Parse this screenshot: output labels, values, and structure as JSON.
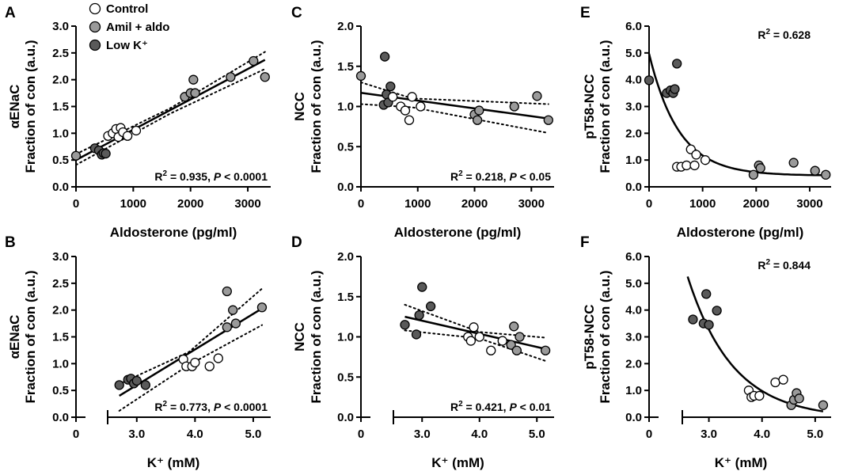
{
  "colors": {
    "control": "#ffffff",
    "amil": "#9a9a9a",
    "lowk": "#5a5a5a",
    "stroke": "#000000"
  },
  "legend": [
    {
      "label": "Control",
      "group": "control"
    },
    {
      "label": "Amil + aldo",
      "group": "amil"
    },
    {
      "label": "Low K⁺",
      "group": "lowk"
    }
  ],
  "chart_data": [
    {
      "id": "A",
      "type": "scatter",
      "panel_label": "A",
      "xlabel": "Aldosterone (pg/ml)",
      "ylabel_line1": "αENaC",
      "ylabel_line2": "Fraction of con (a.u.)",
      "xlim": [
        0,
        3400
      ],
      "ylim": [
        0,
        3.0
      ],
      "broken_x": false,
      "xticks": [
        {
          "v": 0,
          "l": "0"
        },
        {
          "v": 1000,
          "l": "1000"
        },
        {
          "v": 2000,
          "l": "2000"
        },
        {
          "v": 3000,
          "l": "3000"
        }
      ],
      "yticks": [
        {
          "v": 0,
          "l": "0.0"
        },
        {
          "v": 0.5,
          "l": "0.5"
        },
        {
          "v": 1.0,
          "l": "1.0"
        },
        {
          "v": 1.5,
          "l": "1.5"
        },
        {
          "v": 2.0,
          "l": "2.0"
        },
        {
          "v": 2.5,
          "l": "2.5"
        },
        {
          "v": 3.0,
          "l": "3.0"
        }
      ],
      "r2": "0.935",
      "p": "< 0.0001",
      "fit": {
        "kind": "linear",
        "x0": 0,
        "y0": 0.5,
        "x1": 3300,
        "y1": 2.37
      },
      "ci": {
        "upper": [
          [
            0,
            0.61
          ],
          [
            1650,
            1.47
          ],
          [
            3300,
            2.52
          ]
        ],
        "lower": [
          [
            0,
            0.41
          ],
          [
            1650,
            1.37
          ],
          [
            3300,
            2.2
          ]
        ]
      },
      "points": [
        {
          "x": 560,
          "y": 0.95,
          "g": "control"
        },
        {
          "x": 640,
          "y": 1.0,
          "g": "control"
        },
        {
          "x": 700,
          "y": 1.08,
          "g": "control"
        },
        {
          "x": 740,
          "y": 0.93,
          "g": "control"
        },
        {
          "x": 780,
          "y": 1.1,
          "g": "control"
        },
        {
          "x": 820,
          "y": 1.02,
          "g": "control"
        },
        {
          "x": 900,
          "y": 0.95,
          "g": "control"
        },
        {
          "x": 1050,
          "y": 1.05,
          "g": "control"
        },
        {
          "x": 1900,
          "y": 1.68,
          "g": "amil"
        },
        {
          "x": 2000,
          "y": 1.75,
          "g": "amil"
        },
        {
          "x": 2050,
          "y": 2.0,
          "g": "amil"
        },
        {
          "x": 2080,
          "y": 1.75,
          "g": "amil"
        },
        {
          "x": 2700,
          "y": 2.05,
          "g": "amil"
        },
        {
          "x": 3100,
          "y": 2.35,
          "g": "amil"
        },
        {
          "x": 3300,
          "y": 2.05,
          "g": "amil"
        },
        {
          "x": 0,
          "y": 0.58,
          "g": "amil"
        },
        {
          "x": 330,
          "y": 0.72,
          "g": "lowk"
        },
        {
          "x": 400,
          "y": 0.68,
          "g": "lowk"
        },
        {
          "x": 450,
          "y": 0.6,
          "g": "lowk"
        },
        {
          "x": 480,
          "y": 0.63,
          "g": "lowk"
        },
        {
          "x": 520,
          "y": 0.62,
          "g": "lowk"
        }
      ]
    },
    {
      "id": "B",
      "type": "scatter",
      "panel_label": "B",
      "xlabel": "K⁺ (mM)",
      "ylabel_line1": "αENaC",
      "ylabel_line2": "Fraction of con (a.u.)",
      "xlim": [
        2.5,
        5.3
      ],
      "ylim": [
        0,
        3.0
      ],
      "broken_x": true,
      "xticks": [
        {
          "v": 3.0,
          "l": "3.0"
        },
        {
          "v": 4.0,
          "l": "4.0"
        },
        {
          "v": 5.0,
          "l": "5.0"
        }
      ],
      "zero_label": "0",
      "yticks": [
        {
          "v": 0,
          "l": "0.0"
        },
        {
          "v": 0.5,
          "l": "0.5"
        },
        {
          "v": 1.0,
          "l": "1.0"
        },
        {
          "v": 1.5,
          "l": "1.5"
        },
        {
          "v": 2.0,
          "l": "2.0"
        },
        {
          "v": 2.5,
          "l": "2.5"
        },
        {
          "v": 3.0,
          "l": "3.0"
        }
      ],
      "r2": "0.773",
      "p": "< 0.0001",
      "fit": {
        "kind": "linear",
        "x0": 2.7,
        "y0": 0.4,
        "x1": 5.15,
        "y1": 2.03
      },
      "ci": {
        "upper": [
          [
            2.7,
            0.62
          ],
          [
            3.9,
            1.22
          ],
          [
            5.15,
            2.4
          ]
        ],
        "lower": [
          [
            2.7,
            0.12
          ],
          [
            3.9,
            0.98
          ],
          [
            5.15,
            1.72
          ]
        ]
      },
      "points": [
        {
          "x": 3.8,
          "y": 1.08,
          "g": "control"
        },
        {
          "x": 3.85,
          "y": 0.95,
          "g": "control"
        },
        {
          "x": 3.95,
          "y": 0.95,
          "g": "control"
        },
        {
          "x": 4.0,
          "y": 1.02,
          "g": "control"
        },
        {
          "x": 4.25,
          "y": 0.95,
          "g": "control"
        },
        {
          "x": 4.4,
          "y": 1.1,
          "g": "control"
        },
        {
          "x": 4.55,
          "y": 2.35,
          "g": "amil"
        },
        {
          "x": 4.55,
          "y": 1.68,
          "g": "amil"
        },
        {
          "x": 4.65,
          "y": 2.0,
          "g": "amil"
        },
        {
          "x": 4.7,
          "y": 1.75,
          "g": "amil"
        },
        {
          "x": 5.15,
          "y": 2.05,
          "g": "amil"
        },
        {
          "x": 2.7,
          "y": 0.6,
          "g": "lowk"
        },
        {
          "x": 2.85,
          "y": 0.7,
          "g": "lowk"
        },
        {
          "x": 2.9,
          "y": 0.72,
          "g": "lowk"
        },
        {
          "x": 2.95,
          "y": 0.63,
          "g": "lowk"
        },
        {
          "x": 3.0,
          "y": 0.68,
          "g": "lowk"
        },
        {
          "x": 3.15,
          "y": 0.6,
          "g": "lowk"
        }
      ]
    },
    {
      "id": "C",
      "type": "scatter",
      "panel_label": "C",
      "xlabel": "Aldosterone (pg/ml)",
      "ylabel_line1": "NCC",
      "ylabel_line2": "Fraction of con (a.u.)",
      "xlim": [
        0,
        3400
      ],
      "ylim": [
        0,
        2.0
      ],
      "broken_x": false,
      "xticks": [
        {
          "v": 0,
          "l": "0"
        },
        {
          "v": 1000,
          "l": "1000"
        },
        {
          "v": 2000,
          "l": "2000"
        },
        {
          "v": 3000,
          "l": "3000"
        }
      ],
      "yticks": [
        {
          "v": 0,
          "l": "0.0"
        },
        {
          "v": 0.5,
          "l": "0.5"
        },
        {
          "v": 1.0,
          "l": "1.0"
        },
        {
          "v": 1.5,
          "l": "1.5"
        },
        {
          "v": 2.0,
          "l": "2.0"
        }
      ],
      "r2": "0.218",
      "p": "< 0.05",
      "fit": {
        "kind": "linear",
        "x0": 0,
        "y0": 1.17,
        "x1": 3300,
        "y1": 0.85
      },
      "ci": {
        "upper": [
          [
            0,
            1.3
          ],
          [
            900,
            1.1
          ],
          [
            3300,
            1.03
          ]
        ],
        "lower": [
          [
            0,
            1.03
          ],
          [
            900,
            0.99
          ],
          [
            3300,
            0.67
          ]
        ]
      },
      "points": [
        {
          "x": 560,
          "y": 1.12,
          "g": "control"
        },
        {
          "x": 700,
          "y": 1.0,
          "g": "control"
        },
        {
          "x": 780,
          "y": 0.95,
          "g": "control"
        },
        {
          "x": 850,
          "y": 0.83,
          "g": "control"
        },
        {
          "x": 900,
          "y": 1.12,
          "g": "control"
        },
        {
          "x": 1050,
          "y": 1.0,
          "g": "control"
        },
        {
          "x": 0,
          "y": 1.38,
          "g": "amil"
        },
        {
          "x": 2000,
          "y": 0.9,
          "g": "amil"
        },
        {
          "x": 2050,
          "y": 0.83,
          "g": "amil"
        },
        {
          "x": 2080,
          "y": 0.95,
          "g": "amil"
        },
        {
          "x": 2700,
          "y": 1.0,
          "g": "amil"
        },
        {
          "x": 3100,
          "y": 1.13,
          "g": "amil"
        },
        {
          "x": 3300,
          "y": 0.83,
          "g": "amil"
        },
        {
          "x": 400,
          "y": 1.02,
          "g": "lowk"
        },
        {
          "x": 420,
          "y": 1.62,
          "g": "lowk"
        },
        {
          "x": 450,
          "y": 1.15,
          "g": "lowk"
        },
        {
          "x": 520,
          "y": 1.25,
          "g": "lowk"
        },
        {
          "x": 480,
          "y": 1.05,
          "g": "lowk"
        }
      ]
    },
    {
      "id": "D",
      "type": "scatter",
      "panel_label": "D",
      "xlabel": "K⁺ (mM)",
      "ylabel_line1": "NCC",
      "ylabel_line2": "Fraction of con (a.u.)",
      "xlim": [
        2.5,
        5.3
      ],
      "ylim": [
        0,
        2.0
      ],
      "broken_x": true,
      "xticks": [
        {
          "v": 3.0,
          "l": "3.0"
        },
        {
          "v": 4.0,
          "l": "4.0"
        },
        {
          "v": 5.0,
          "l": "5.0"
        }
      ],
      "zero_label": "0",
      "yticks": [
        {
          "v": 0,
          "l": "0.0"
        },
        {
          "v": 0.5,
          "l": "0.5"
        },
        {
          "v": 1.0,
          "l": "1.0"
        },
        {
          "v": 1.5,
          "l": "1.5"
        },
        {
          "v": 2.0,
          "l": "2.0"
        }
      ],
      "r2": "0.421",
      "p": "< 0.01",
      "fit": {
        "kind": "linear",
        "x0": 2.7,
        "y0": 1.25,
        "x1": 5.15,
        "y1": 0.85
      },
      "ci": {
        "upper": [
          [
            2.7,
            1.4
          ],
          [
            4.0,
            1.06
          ],
          [
            5.15,
            0.99
          ]
        ],
        "lower": [
          [
            2.7,
            1.08
          ],
          [
            4.0,
            0.98
          ],
          [
            5.15,
            0.7
          ]
        ]
      },
      "points": [
        {
          "x": 3.8,
          "y": 1.0,
          "g": "control"
        },
        {
          "x": 3.85,
          "y": 0.95,
          "g": "control"
        },
        {
          "x": 3.9,
          "y": 1.12,
          "g": "control"
        },
        {
          "x": 4.0,
          "y": 1.0,
          "g": "control"
        },
        {
          "x": 4.2,
          "y": 0.83,
          "g": "control"
        },
        {
          "x": 4.4,
          "y": 0.95,
          "g": "control"
        },
        {
          "x": 4.55,
          "y": 0.9,
          "g": "amil"
        },
        {
          "x": 4.6,
          "y": 1.13,
          "g": "amil"
        },
        {
          "x": 4.65,
          "y": 0.83,
          "g": "amil"
        },
        {
          "x": 4.7,
          "y": 1.0,
          "g": "amil"
        },
        {
          "x": 5.15,
          "y": 0.83,
          "g": "amil"
        },
        {
          "x": 2.7,
          "y": 1.15,
          "g": "lowk"
        },
        {
          "x": 2.9,
          "y": 1.03,
          "g": "lowk"
        },
        {
          "x": 2.95,
          "y": 1.27,
          "g": "lowk"
        },
        {
          "x": 3.0,
          "y": 1.62,
          "g": "lowk"
        },
        {
          "x": 3.15,
          "y": 1.38,
          "g": "lowk"
        }
      ]
    },
    {
      "id": "E",
      "type": "scatter",
      "panel_label": "E",
      "xlabel": "Aldosterone (pg/ml)",
      "ylabel_line1": "pT58-NCC",
      "ylabel_line2": "Fraction of con (a.u.)",
      "xlim": [
        0,
        3400
      ],
      "ylim": [
        0,
        6.0
      ],
      "broken_x": false,
      "xticks": [
        {
          "v": 0,
          "l": "0"
        },
        {
          "v": 1000,
          "l": "1000"
        },
        {
          "v": 2000,
          "l": "2000"
        },
        {
          "v": 3000,
          "l": "3000"
        }
      ],
      "yticks": [
        {
          "v": 0,
          "l": "0.0"
        },
        {
          "v": 1,
          "l": "1.0"
        },
        {
          "v": 2,
          "l": "2.0"
        },
        {
          "v": 3,
          "l": "3.0"
        },
        {
          "v": 4,
          "l": "4.0"
        },
        {
          "v": 5,
          "l": "5.0"
        },
        {
          "v": 6,
          "l": "6.0"
        }
      ],
      "r2": "0.628",
      "fit": {
        "kind": "exp",
        "a": 4.55,
        "k": 0.0018,
        "c": 0.42,
        "x0": 0,
        "x1": 3300
      },
      "points": [
        {
          "x": 520,
          "y": 0.75,
          "g": "control"
        },
        {
          "x": 600,
          "y": 0.75,
          "g": "control"
        },
        {
          "x": 700,
          "y": 0.8,
          "g": "control"
        },
        {
          "x": 780,
          "y": 1.4,
          "g": "control"
        },
        {
          "x": 850,
          "y": 0.8,
          "g": "control"
        },
        {
          "x": 880,
          "y": 1.2,
          "g": "control"
        },
        {
          "x": 1050,
          "y": 1.0,
          "g": "control"
        },
        {
          "x": 1950,
          "y": 0.45,
          "g": "amil"
        },
        {
          "x": 2050,
          "y": 0.8,
          "g": "amil"
        },
        {
          "x": 2080,
          "y": 0.7,
          "g": "amil"
        },
        {
          "x": 2700,
          "y": 0.9,
          "g": "amil"
        },
        {
          "x": 3100,
          "y": 0.6,
          "g": "amil"
        },
        {
          "x": 3300,
          "y": 0.45,
          "g": "amil"
        },
        {
          "x": 0,
          "y": 3.98,
          "g": "lowk"
        },
        {
          "x": 330,
          "y": 3.5,
          "g": "lowk"
        },
        {
          "x": 400,
          "y": 3.6,
          "g": "lowk"
        },
        {
          "x": 450,
          "y": 3.5,
          "g": "lowk"
        },
        {
          "x": 480,
          "y": 3.65,
          "g": "lowk"
        },
        {
          "x": 520,
          "y": 4.6,
          "g": "lowk"
        }
      ]
    },
    {
      "id": "F",
      "type": "scatter",
      "panel_label": "F",
      "xlabel": "K⁺ (mM)",
      "ylabel_line1": "pT58-NCC",
      "ylabel_line2": "Fraction of con (a.u.)",
      "xlim": [
        2.5,
        5.3
      ],
      "ylim": [
        0,
        6.0
      ],
      "broken_x": true,
      "xticks": [
        {
          "v": 3.0,
          "l": "3.0"
        },
        {
          "v": 4.0,
          "l": "4.0"
        },
        {
          "v": 5.0,
          "l": "5.0"
        }
      ],
      "zero_label": "0",
      "yticks": [
        {
          "v": 0,
          "l": "0.0"
        },
        {
          "v": 1,
          "l": "1.0"
        },
        {
          "v": 2,
          "l": "2.0"
        },
        {
          "v": 3,
          "l": "3.0"
        },
        {
          "v": 4,
          "l": "4.0"
        },
        {
          "v": 5,
          "l": "5.0"
        },
        {
          "v": 6,
          "l": "6.0"
        }
      ],
      "r2": "0.844",
      "fit": {
        "kind": "exp",
        "a": 5.3,
        "k": 1.17,
        "c": -0.05,
        "xs": 2.6,
        "x0": 2.6,
        "x1": 5.15
      },
      "points": [
        {
          "x": 3.75,
          "y": 1.0,
          "g": "control"
        },
        {
          "x": 3.8,
          "y": 0.75,
          "g": "control"
        },
        {
          "x": 3.85,
          "y": 0.8,
          "g": "control"
        },
        {
          "x": 3.95,
          "y": 0.8,
          "g": "control"
        },
        {
          "x": 4.25,
          "y": 1.3,
          "g": "control"
        },
        {
          "x": 4.4,
          "y": 1.4,
          "g": "control"
        },
        {
          "x": 4.55,
          "y": 0.45,
          "g": "amil"
        },
        {
          "x": 4.6,
          "y": 0.65,
          "g": "amil"
        },
        {
          "x": 4.65,
          "y": 0.9,
          "g": "amil"
        },
        {
          "x": 4.7,
          "y": 0.7,
          "g": "amil"
        },
        {
          "x": 5.15,
          "y": 0.45,
          "g": "amil"
        },
        {
          "x": 2.7,
          "y": 3.65,
          "g": "lowk"
        },
        {
          "x": 2.9,
          "y": 3.5,
          "g": "lowk"
        },
        {
          "x": 2.95,
          "y": 4.6,
          "g": "lowk"
        },
        {
          "x": 3.0,
          "y": 3.45,
          "g": "lowk"
        },
        {
          "x": 3.15,
          "y": 3.98,
          "g": "lowk"
        }
      ]
    }
  ]
}
